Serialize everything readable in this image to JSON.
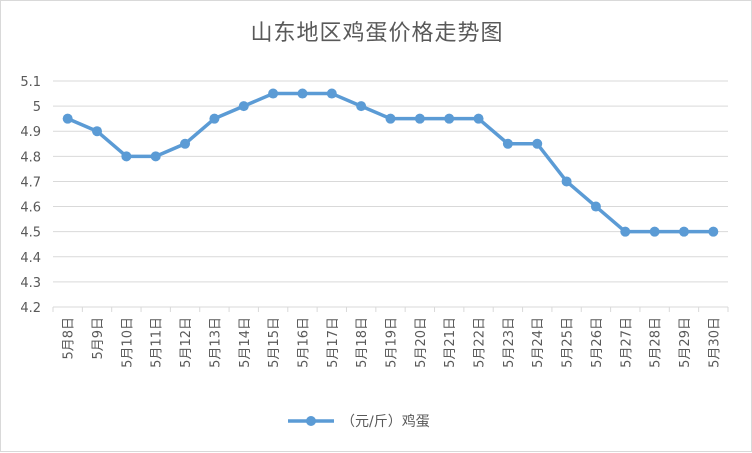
{
  "chart_data": {
    "type": "line",
    "title": "山东地区鸡蛋价格走势图",
    "categories": [
      "5月8日",
      "5月9日",
      "5月10日",
      "5月11日",
      "5月12日",
      "5月13日",
      "5月14日",
      "5月15日",
      "5月16日",
      "5月17日",
      "5月18日",
      "5月19日",
      "5月20日",
      "5月21日",
      "5月22日",
      "5月23日",
      "5月24日",
      "5月25日",
      "5月26日",
      "5月27日",
      "5月28日",
      "5月29日",
      "5月30日"
    ],
    "series": [
      {
        "name": "（元/斤）鸡蛋",
        "values": [
          4.95,
          4.9,
          4.8,
          4.8,
          4.85,
          4.95,
          5.0,
          5.05,
          5.05,
          5.05,
          5.0,
          4.95,
          4.95,
          4.95,
          4.95,
          4.85,
          4.85,
          4.7,
          4.6,
          4.5,
          4.5,
          4.5,
          4.5
        ]
      }
    ],
    "ylim": [
      4.2,
      5.1
    ],
    "yticks": [
      "5.1",
      "5",
      "4.9",
      "4.8",
      "4.7",
      "4.6",
      "4.5",
      "4.4",
      "4.3",
      "4.2"
    ],
    "grid": true,
    "legend_position": "bottom",
    "colors": {
      "line": "#5b9bd5",
      "grid": "#d9d9d9",
      "text": "#595959"
    }
  }
}
